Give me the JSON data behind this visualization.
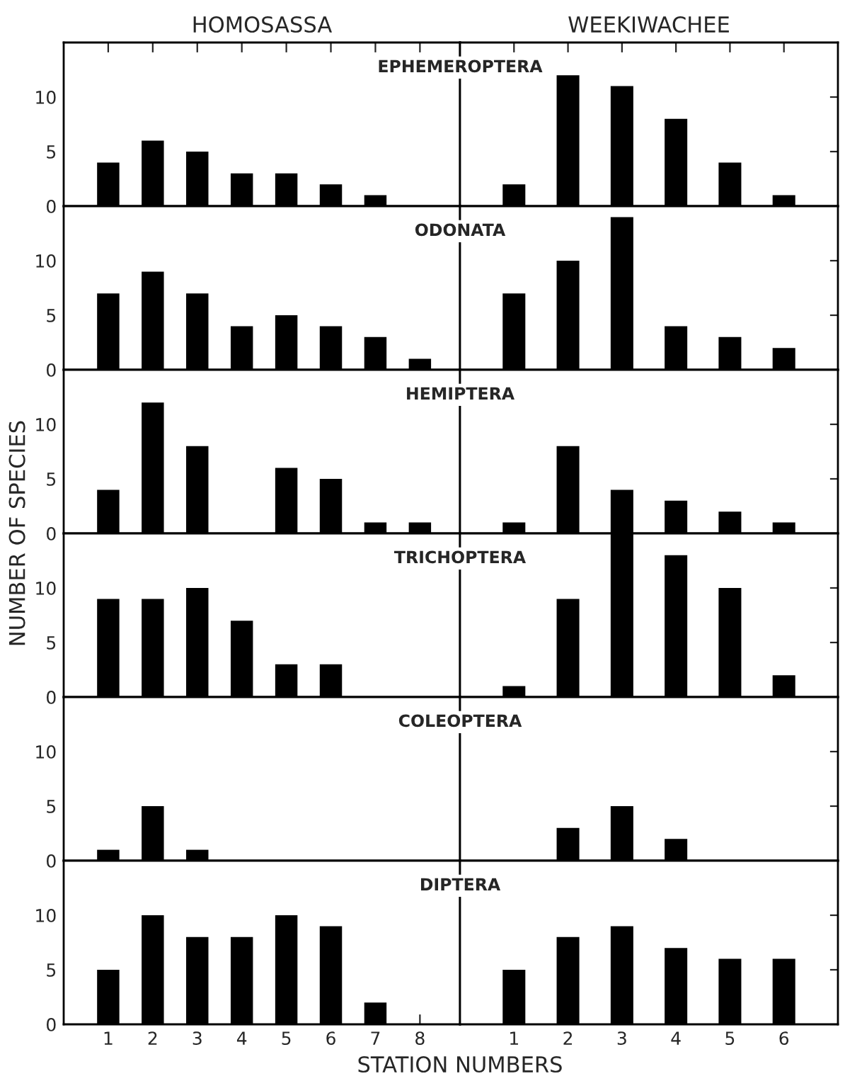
{
  "chart_data": [
    {
      "type": "bar",
      "subtitle": "HOMOSASSA",
      "title": "EPHEMEROPTERA",
      "categories": [
        "1",
        "2",
        "3",
        "4",
        "5",
        "6",
        "7",
        "8"
      ],
      "values": [
        4,
        6,
        5,
        3,
        3,
        2,
        1,
        0
      ],
      "color": "#000000",
      "ylim": [
        0,
        15
      ],
      "yticks": [
        0,
        5,
        10
      ],
      "tick_labels": "y"
    },
    {
      "type": "bar",
      "subtitle": "WEEKIWACHEE",
      "categories": [
        "1",
        "2",
        "3",
        "4",
        "5",
        "6"
      ],
      "values": [
        2,
        12,
        11,
        8,
        4,
        1
      ],
      "color": "#000000",
      "ylim": [
        0,
        15
      ],
      "yticks": [
        0,
        5,
        10
      ],
      "tick_labels": false
    },
    {
      "type": "bar",
      "title": "ODONATA",
      "categories": [
        "1",
        "2",
        "3",
        "4",
        "5",
        "6",
        "7",
        "8"
      ],
      "values": [
        7,
        9,
        7,
        4,
        5,
        4,
        3,
        1
      ],
      "color": "#000000",
      "ylim": [
        0,
        15
      ],
      "yticks": [
        0,
        5,
        10
      ],
      "tick_labels": "y"
    },
    {
      "type": "bar",
      "categories": [
        "1",
        "2",
        "3",
        "4",
        "5",
        "6"
      ],
      "values": [
        7,
        10,
        14,
        4,
        3,
        2
      ],
      "color": "#000000",
      "ylim": [
        0,
        15
      ],
      "yticks": [
        0,
        5,
        10
      ],
      "tick_labels": false
    },
    {
      "type": "bar",
      "title": "HEMIPTERA",
      "categories": [
        "1",
        "2",
        "3",
        "4",
        "5",
        "6",
        "7",
        "8"
      ],
      "values": [
        4,
        12,
        8,
        0,
        6,
        5,
        1,
        1
      ],
      "color": "#000000",
      "ylim": [
        0,
        15
      ],
      "yticks": [
        0,
        5,
        10
      ],
      "tick_labels": "y"
    },
    {
      "type": "bar",
      "categories": [
        "1",
        "2",
        "3",
        "4",
        "5",
        "6"
      ],
      "values": [
        1,
        8,
        4,
        3,
        2,
        1
      ],
      "color": "#000000",
      "ylim": [
        0,
        15
      ],
      "yticks": [
        0,
        5,
        10
      ],
      "tick_labels": false
    },
    {
      "type": "bar",
      "title": "TRICHOPTERA",
      "ylabel": "NUMBER OF SPECIES",
      "categories": [
        "1",
        "2",
        "3",
        "4",
        "5",
        "6",
        "7",
        "8"
      ],
      "values": [
        9,
        9,
        10,
        7,
        3,
        3,
        0,
        0
      ],
      "color": "#000000",
      "ylim": [
        0,
        15
      ],
      "yticks": [
        0,
        5,
        10
      ],
      "tick_labels": "y"
    },
    {
      "type": "bar",
      "categories": [
        "1",
        "2",
        "3",
        "4",
        "5",
        "6"
      ],
      "values": [
        1,
        9,
        15,
        13,
        10,
        2
      ],
      "color": "#000000",
      "ylim": [
        0,
        15
      ],
      "yticks": [
        0,
        5,
        10
      ],
      "tick_labels": false
    },
    {
      "type": "bar",
      "title": "COLEOPTERA",
      "categories": [
        "1",
        "2",
        "3",
        "4",
        "5",
        "6",
        "7",
        "8"
      ],
      "values": [
        1,
        5,
        1,
        0,
        0,
        0,
        0,
        0
      ],
      "color": "#000000",
      "ylim": [
        0,
        15
      ],
      "yticks": [
        0,
        5,
        10
      ],
      "tick_labels": "y"
    },
    {
      "type": "bar",
      "categories": [
        "1",
        "2",
        "3",
        "4",
        "5",
        "6"
      ],
      "values": [
        0,
        3,
        5,
        2,
        0,
        0
      ],
      "color": "#000000",
      "ylim": [
        0,
        15
      ],
      "yticks": [
        0,
        5,
        10
      ],
      "tick_labels": false
    },
    {
      "type": "bar",
      "title": "DIPTERA",
      "xlabel": "STATION NUMBERS",
      "categories": [
        "1",
        "2",
        "3",
        "4",
        "5",
        "6",
        "7",
        "8"
      ],
      "values": [
        5,
        10,
        8,
        8,
        10,
        9,
        2,
        0
      ],
      "color": "#000000",
      "ylim": [
        0,
        15
      ],
      "yticks": [
        0,
        5,
        10
      ]
    },
    {
      "type": "bar",
      "categories": [
        "1",
        "2",
        "3",
        "4",
        "5",
        "6"
      ],
      "values": [
        5,
        8,
        9,
        7,
        6,
        6
      ],
      "color": "#000000",
      "ylim": [
        0,
        15
      ],
      "yticks": [
        0,
        5,
        10
      ],
      "tick_labels": "x"
    }
  ]
}
